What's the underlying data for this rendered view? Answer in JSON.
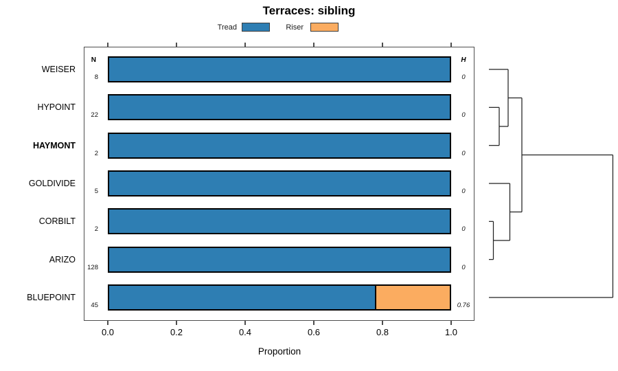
{
  "title": "Terraces: sibling",
  "legend": {
    "items": [
      {
        "label": "Tread",
        "color": "#2e7eb3"
      },
      {
        "label": "Riser",
        "color": "#fbac60"
      }
    ]
  },
  "panel": {
    "n_header": "N",
    "h_header": "H"
  },
  "chart_data": {
    "type": "bar",
    "orientation": "horizontal",
    "stacked": true,
    "title": "Terraces: sibling",
    "xlabel": "Proportion",
    "xlim": [
      0,
      1
    ],
    "xtick_values": [
      0.0,
      0.2,
      0.4,
      0.6,
      0.8,
      1.0
    ],
    "xtick_labels": [
      "0.0",
      "0.2",
      "0.4",
      "0.6",
      "0.8",
      "1.0"
    ],
    "grid": false,
    "legend_position": "top",
    "categories": [
      "WEISER",
      "HYPOINT",
      "HAYMONT",
      "GOLDIVIDE",
      "CORBILT",
      "ARIZO",
      "BLUEPOINT"
    ],
    "emphasized_category": "HAYMONT",
    "n_values": [
      "8",
      "22",
      "2",
      "5",
      "2",
      "128",
      "45"
    ],
    "h_values": [
      "0",
      "0",
      "0",
      "0",
      "0",
      "0",
      "0.76"
    ],
    "series": [
      {
        "name": "Tread",
        "color": "#2e7eb3",
        "values": [
          1,
          1,
          1,
          1,
          1,
          1,
          0.78
        ]
      },
      {
        "name": "Riser",
        "color": "#fbac60",
        "values": [
          0,
          0,
          0,
          0,
          0,
          0,
          0.22
        ]
      }
    ],
    "dendrogram": {
      "side": "right",
      "tree": {
        "h": 180.5,
        "children": [
          {
            "h": 48,
            "children": [
              {
                "h": 28,
                "children": [
                  {
                    "leaf": "WEISER"
                  },
                  {
                    "h": 15,
                    "children": [
                      {
                        "leaf": "HYPOINT"
                      },
                      {
                        "leaf": "HAYMONT"
                      }
                    ]
                  }
                ]
              },
              {
                "h": 30.5,
                "children": [
                  {
                    "leaf": "GOLDIVIDE"
                  },
                  {
                    "h": 6.5,
                    "children": [
                      {
                        "leaf": "CORBILT"
                      },
                      {
                        "leaf": "ARIZO"
                      }
                    ]
                  }
                ]
              }
            ]
          },
          {
            "leaf": "BLUEPOINT"
          }
        ]
      }
    }
  }
}
